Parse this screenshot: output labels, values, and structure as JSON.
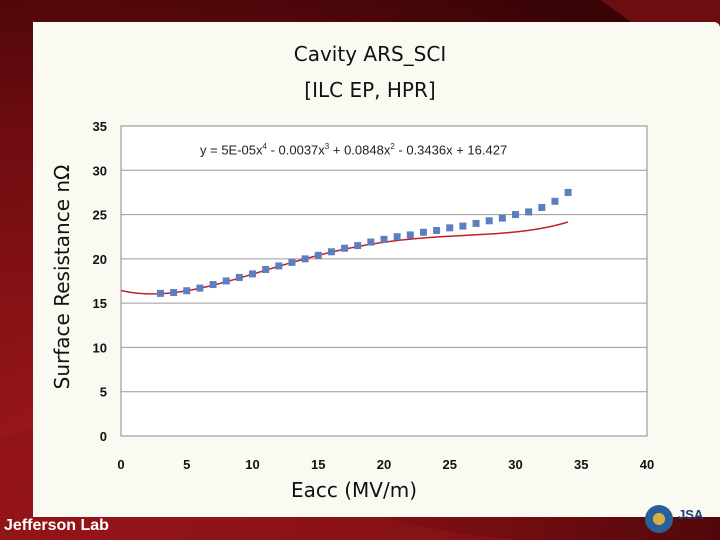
{
  "slide": {
    "logo_text": "Jefferson Lab",
    "partner_logo_text": "JSA",
    "colors": {
      "background": "#7a1014",
      "panel": "#fbfaf2",
      "fit_line": "#c0202a",
      "markers": "#5b7fbf"
    }
  },
  "chart_data": {
    "type": "scatter",
    "title": "Cavity ARS_SCI",
    "subtitle": "[ILC EP, HPR]",
    "xlabel": "Eacc (MV/m)",
    "ylabel": "Surface Resistance nΩ",
    "xlim": [
      0,
      40
    ],
    "ylim": [
      0,
      35
    ],
    "xticks": [
      0,
      5,
      10,
      15,
      20,
      25,
      30,
      35,
      40
    ],
    "yticks": [
      0,
      5,
      10,
      15,
      20,
      25,
      30,
      35
    ],
    "grid": "horizontal",
    "legend": "none",
    "trendline": {
      "type": "polynomial",
      "order": 4,
      "equation_parts": [
        "y = 5E-05x",
        "4",
        " - 0.0037x",
        "3",
        " + 0.0848x",
        "2",
        " - 0.3436x + 16.427"
      ],
      "coefficients": [
        16.427,
        -0.3436,
        0.0848,
        -0.0037,
        5e-05
      ],
      "x_range": [
        0,
        34
      ]
    },
    "series": [
      {
        "x": [
          3,
          4,
          5,
          6,
          7,
          8,
          9,
          10,
          11,
          12,
          13,
          14,
          15,
          16,
          17,
          18,
          19,
          20,
          21,
          22,
          23,
          24,
          25,
          26,
          27,
          28,
          29,
          30,
          31,
          32,
          33,
          34
        ],
        "y": [
          16.1,
          16.2,
          16.4,
          16.7,
          17.1,
          17.5,
          17.9,
          18.3,
          18.8,
          19.2,
          19.6,
          20.0,
          20.4,
          20.8,
          21.2,
          21.5,
          21.9,
          22.2,
          22.5,
          22.7,
          23.0,
          23.2,
          23.5,
          23.7,
          24.0,
          24.3,
          24.6,
          25.0,
          25.3,
          25.8,
          26.5,
          27.5
        ]
      }
    ]
  }
}
